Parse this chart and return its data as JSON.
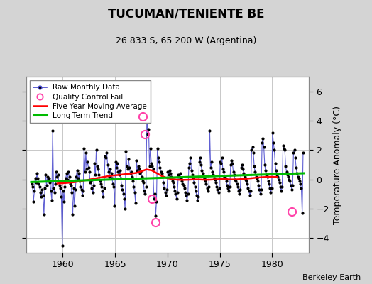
{
  "title": "TUCUMAN/TENIENTE BE",
  "subtitle": "26.833 S, 65.200 W (Argentina)",
  "ylabel": "Temperature Anomaly (°C)",
  "attribution": "Berkeley Earth",
  "xlim": [
    1956.5,
    1983.5
  ],
  "ylim": [
    -5.0,
    7.0
  ],
  "yticks": [
    -4,
    -2,
    0,
    2,
    4,
    6
  ],
  "xticks": [
    1960,
    1965,
    1970,
    1975,
    1980
  ],
  "bg_color": "#d4d4d4",
  "plot_bg_color": "#ffffff",
  "grid_color": "#c8c8c8",
  "raw_line_color": "#4444cc",
  "raw_dot_color": "#000000",
  "qc_fail_color": "#ff44aa",
  "moving_avg_color": "#ff0000",
  "trend_color": "#00bb00",
  "raw_monthly_data": [
    [
      1957.042,
      -0.3
    ],
    [
      1957.125,
      -0.5
    ],
    [
      1957.208,
      -1.5
    ],
    [
      1957.292,
      -0.8
    ],
    [
      1957.375,
      0.1
    ],
    [
      1957.458,
      -0.2
    ],
    [
      1957.542,
      0.4
    ],
    [
      1957.625,
      0.1
    ],
    [
      1957.708,
      -0.3
    ],
    [
      1957.792,
      -0.5
    ],
    [
      1957.875,
      -0.9
    ],
    [
      1957.958,
      -1.2
    ],
    [
      1958.042,
      -0.7
    ],
    [
      1958.125,
      -1.1
    ],
    [
      1958.208,
      -2.4
    ],
    [
      1958.292,
      -0.6
    ],
    [
      1958.375,
      0.3
    ],
    [
      1958.458,
      -0.4
    ],
    [
      1958.542,
      0.2
    ],
    [
      1958.625,
      0.0
    ],
    [
      1958.708,
      0.1
    ],
    [
      1958.792,
      -0.2
    ],
    [
      1958.875,
      -0.8
    ],
    [
      1958.958,
      -1.4
    ],
    [
      1959.042,
      3.3
    ],
    [
      1959.125,
      -0.6
    ],
    [
      1959.208,
      -0.9
    ],
    [
      1959.292,
      -0.3
    ],
    [
      1959.375,
      0.5
    ],
    [
      1959.458,
      0.2
    ],
    [
      1959.542,
      0.3
    ],
    [
      1959.625,
      -0.1
    ],
    [
      1959.708,
      -0.4
    ],
    [
      1959.792,
      -0.6
    ],
    [
      1959.875,
      -1.2
    ],
    [
      1959.958,
      -4.5
    ],
    [
      1960.042,
      -0.8
    ],
    [
      1960.125,
      -1.5
    ],
    [
      1960.208,
      -0.5
    ],
    [
      1960.292,
      0.1
    ],
    [
      1960.375,
      0.4
    ],
    [
      1960.458,
      0.0
    ],
    [
      1960.542,
      0.5
    ],
    [
      1960.625,
      0.2
    ],
    [
      1960.708,
      -0.3
    ],
    [
      1960.792,
      -0.4
    ],
    [
      1960.875,
      -0.9
    ],
    [
      1960.958,
      -2.4
    ],
    [
      1961.042,
      -0.6
    ],
    [
      1961.125,
      -1.8
    ],
    [
      1961.208,
      -0.7
    ],
    [
      1961.292,
      0.2
    ],
    [
      1961.375,
      0.6
    ],
    [
      1961.458,
      0.1
    ],
    [
      1961.542,
      0.4
    ],
    [
      1961.625,
      -0.1
    ],
    [
      1961.708,
      -0.5
    ],
    [
      1961.792,
      -0.7
    ],
    [
      1961.875,
      -1.1
    ],
    [
      1961.958,
      -0.8
    ],
    [
      1962.042,
      2.1
    ],
    [
      1962.125,
      0.5
    ],
    [
      1962.208,
      1.8
    ],
    [
      1962.292,
      0.7
    ],
    [
      1962.375,
      1.2
    ],
    [
      1962.458,
      0.8
    ],
    [
      1962.542,
      0.5
    ],
    [
      1962.625,
      -0.2
    ],
    [
      1962.708,
      -0.1
    ],
    [
      1962.792,
      -0.6
    ],
    [
      1962.875,
      -0.9
    ],
    [
      1962.958,
      -0.4
    ],
    [
      1963.042,
      1.1
    ],
    [
      1963.125,
      0.3
    ],
    [
      1963.208,
      2.0
    ],
    [
      1963.292,
      0.9
    ],
    [
      1963.375,
      0.7
    ],
    [
      1963.458,
      0.3
    ],
    [
      1963.542,
      -0.1
    ],
    [
      1963.625,
      -0.3
    ],
    [
      1963.708,
      -0.5
    ],
    [
      1963.792,
      -0.8
    ],
    [
      1963.875,
      -1.2
    ],
    [
      1963.958,
      -0.6
    ],
    [
      1964.042,
      1.6
    ],
    [
      1964.125,
      1.5
    ],
    [
      1964.208,
      1.8
    ],
    [
      1964.292,
      1.0
    ],
    [
      1964.375,
      0.5
    ],
    [
      1964.458,
      0.2
    ],
    [
      1964.542,
      0.7
    ],
    [
      1964.625,
      0.4
    ],
    [
      1964.708,
      0.1
    ],
    [
      1964.792,
      -0.3
    ],
    [
      1964.875,
      -0.5
    ],
    [
      1964.958,
      -1.8
    ],
    [
      1965.042,
      1.2
    ],
    [
      1965.125,
      0.8
    ],
    [
      1965.208,
      1.1
    ],
    [
      1965.292,
      0.5
    ],
    [
      1965.375,
      0.3
    ],
    [
      1965.458,
      0.6
    ],
    [
      1965.542,
      0.1
    ],
    [
      1965.625,
      -0.4
    ],
    [
      1965.708,
      -0.7
    ],
    [
      1965.792,
      -1.0
    ],
    [
      1965.875,
      -1.3
    ],
    [
      1965.958,
      -2.0
    ],
    [
      1966.042,
      1.9
    ],
    [
      1966.125,
      0.9
    ],
    [
      1966.208,
      0.7
    ],
    [
      1966.292,
      1.4
    ],
    [
      1966.375,
      0.8
    ],
    [
      1966.458,
      0.4
    ],
    [
      1966.542,
      0.5
    ],
    [
      1966.625,
      0.2
    ],
    [
      1966.708,
      -0.1
    ],
    [
      1966.792,
      -0.5
    ],
    [
      1966.875,
      -0.9
    ],
    [
      1966.958,
      -1.6
    ],
    [
      1967.042,
      1.3
    ],
    [
      1967.125,
      0.6
    ],
    [
      1967.208,
      0.9
    ],
    [
      1967.292,
      0.7
    ],
    [
      1967.375,
      0.4
    ],
    [
      1967.458,
      0.5
    ],
    [
      1967.542,
      0.2
    ],
    [
      1967.625,
      -0.1
    ],
    [
      1967.708,
      -0.2
    ],
    [
      1967.792,
      -0.8
    ],
    [
      1967.875,
      -1.0
    ],
    [
      1967.958,
      -0.5
    ],
    [
      1968.042,
      4.3
    ],
    [
      1968.125,
      3.1
    ],
    [
      1968.208,
      3.4
    ],
    [
      1968.292,
      0.9
    ],
    [
      1968.375,
      2.1
    ],
    [
      1968.458,
      1.1
    ],
    [
      1968.542,
      0.9
    ],
    [
      1968.625,
      0.7
    ],
    [
      1968.708,
      -1.3
    ],
    [
      1968.792,
      -1.0
    ],
    [
      1968.875,
      -2.5
    ],
    [
      1968.958,
      -1.5
    ],
    [
      1969.042,
      2.1
    ],
    [
      1969.125,
      1.5
    ],
    [
      1969.208,
      1.2
    ],
    [
      1969.292,
      0.8
    ],
    [
      1969.375,
      0.5
    ],
    [
      1969.458,
      0.4
    ],
    [
      1969.542,
      0.2
    ],
    [
      1969.625,
      -0.2
    ],
    [
      1969.708,
      -0.6
    ],
    [
      1969.792,
      -0.9
    ],
    [
      1969.875,
      -1.1
    ],
    [
      1969.958,
      -0.7
    ],
    [
      1970.042,
      0.5
    ],
    [
      1970.125,
      0.3
    ],
    [
      1970.208,
      0.6
    ],
    [
      1970.292,
      0.4
    ],
    [
      1970.375,
      0.2
    ],
    [
      1970.458,
      -0.1
    ],
    [
      1970.542,
      -0.2
    ],
    [
      1970.625,
      -0.5
    ],
    [
      1970.708,
      -0.8
    ],
    [
      1970.792,
      -1.0
    ],
    [
      1970.875,
      -1.3
    ],
    [
      1970.958,
      -0.9
    ],
    [
      1971.042,
      0.3
    ],
    [
      1971.125,
      0.2
    ],
    [
      1971.208,
      0.4
    ],
    [
      1971.292,
      0.1
    ],
    [
      1971.375,
      -0.1
    ],
    [
      1971.458,
      -0.3
    ],
    [
      1971.542,
      -0.4
    ],
    [
      1971.625,
      -0.6
    ],
    [
      1971.708,
      -0.9
    ],
    [
      1971.792,
      -1.1
    ],
    [
      1971.875,
      -1.4
    ],
    [
      1971.958,
      -1.0
    ],
    [
      1972.042,
      0.8
    ],
    [
      1972.125,
      1.1
    ],
    [
      1972.208,
      1.5
    ],
    [
      1972.292,
      0.6
    ],
    [
      1972.375,
      0.3
    ],
    [
      1972.458,
      0.1
    ],
    [
      1972.542,
      -0.2
    ],
    [
      1972.625,
      -0.5
    ],
    [
      1972.708,
      -0.8
    ],
    [
      1972.792,
      -1.1
    ],
    [
      1972.875,
      -1.4
    ],
    [
      1972.958,
      -1.2
    ],
    [
      1973.042,
      1.2
    ],
    [
      1973.125,
      1.5
    ],
    [
      1973.208,
      1.0
    ],
    [
      1973.292,
      0.6
    ],
    [
      1973.375,
      0.4
    ],
    [
      1973.458,
      0.2
    ],
    [
      1973.542,
      0.1
    ],
    [
      1973.625,
      -0.1
    ],
    [
      1973.708,
      -0.3
    ],
    [
      1973.792,
      -0.6
    ],
    [
      1973.875,
      -0.8
    ],
    [
      1973.958,
      -0.5
    ],
    [
      1974.042,
      3.3
    ],
    [
      1974.125,
      0.8
    ],
    [
      1974.208,
      1.2
    ],
    [
      1974.292,
      0.5
    ],
    [
      1974.375,
      0.3
    ],
    [
      1974.458,
      0.1
    ],
    [
      1974.542,
      0.0
    ],
    [
      1974.625,
      -0.2
    ],
    [
      1974.708,
      -0.5
    ],
    [
      1974.792,
      -0.7
    ],
    [
      1974.875,
      -0.9
    ],
    [
      1974.958,
      -0.6
    ],
    [
      1975.042,
      1.2
    ],
    [
      1975.125,
      1.1
    ],
    [
      1975.208,
      1.5
    ],
    [
      1975.292,
      0.7
    ],
    [
      1975.375,
      0.5
    ],
    [
      1975.458,
      0.2
    ],
    [
      1975.542,
      0.1
    ],
    [
      1975.625,
      -0.1
    ],
    [
      1975.708,
      -0.4
    ],
    [
      1975.792,
      -0.6
    ],
    [
      1975.875,
      -0.8
    ],
    [
      1975.958,
      -0.5
    ],
    [
      1976.042,
      1.0
    ],
    [
      1976.125,
      1.3
    ],
    [
      1976.208,
      1.1
    ],
    [
      1976.292,
      0.5
    ],
    [
      1976.375,
      0.3
    ],
    [
      1976.458,
      0.0
    ],
    [
      1976.542,
      -0.1
    ],
    [
      1976.625,
      -0.3
    ],
    [
      1976.708,
      -0.5
    ],
    [
      1976.792,
      -0.8
    ],
    [
      1976.875,
      -1.0
    ],
    [
      1976.958,
      -0.7
    ],
    [
      1977.042,
      0.8
    ],
    [
      1977.125,
      1.0
    ],
    [
      1977.208,
      0.7
    ],
    [
      1977.292,
      0.4
    ],
    [
      1977.375,
      0.2
    ],
    [
      1977.458,
      0.0
    ],
    [
      1977.542,
      -0.1
    ],
    [
      1977.625,
      -0.3
    ],
    [
      1977.708,
      -0.6
    ],
    [
      1977.792,
      -0.8
    ],
    [
      1977.875,
      -1.1
    ],
    [
      1977.958,
      -0.8
    ],
    [
      1978.042,
      2.0
    ],
    [
      1978.125,
      2.2
    ],
    [
      1978.208,
      1.8
    ],
    [
      1978.292,
      0.9
    ],
    [
      1978.375,
      0.5
    ],
    [
      1978.458,
      0.2
    ],
    [
      1978.542,
      0.1
    ],
    [
      1978.625,
      -0.1
    ],
    [
      1978.708,
      -0.4
    ],
    [
      1978.792,
      -0.7
    ],
    [
      1978.875,
      -1.0
    ],
    [
      1978.958,
      -0.7
    ],
    [
      1979.042,
      2.5
    ],
    [
      1979.125,
      2.8
    ],
    [
      1979.208,
      2.2
    ],
    [
      1979.292,
      1.0
    ],
    [
      1979.375,
      0.6
    ],
    [
      1979.458,
      0.3
    ],
    [
      1979.542,
      0.2
    ],
    [
      1979.625,
      -0.1
    ],
    [
      1979.708,
      -0.3
    ],
    [
      1979.792,
      -0.6
    ],
    [
      1979.875,
      -0.9
    ],
    [
      1979.958,
      -0.6
    ],
    [
      1980.042,
      3.2
    ],
    [
      1980.125,
      2.5
    ],
    [
      1980.208,
      2.0
    ],
    [
      1980.292,
      1.1
    ],
    [
      1980.375,
      0.6
    ],
    [
      1980.458,
      0.3
    ],
    [
      1980.542,
      0.2
    ],
    [
      1980.625,
      0.0
    ],
    [
      1980.708,
      -0.2
    ],
    [
      1980.792,
      -0.5
    ],
    [
      1980.875,
      -0.8
    ],
    [
      1980.958,
      -0.5
    ],
    [
      1981.042,
      2.3
    ],
    [
      1981.125,
      2.1
    ],
    [
      1981.208,
      2.0
    ],
    [
      1981.292,
      0.9
    ],
    [
      1981.375,
      0.5
    ],
    [
      1981.458,
      0.3
    ],
    [
      1981.542,
      0.2
    ],
    [
      1981.625,
      0.0
    ],
    [
      1981.708,
      -0.1
    ],
    [
      1981.792,
      -0.4
    ],
    [
      1981.875,
      -0.7
    ],
    [
      1981.958,
      -0.4
    ],
    [
      1982.042,
      1.8
    ],
    [
      1982.125,
      2.0
    ],
    [
      1982.208,
      1.5
    ],
    [
      1982.292,
      0.8
    ],
    [
      1982.375,
      0.4
    ],
    [
      1982.458,
      0.2
    ],
    [
      1982.542,
      0.1
    ],
    [
      1982.625,
      -0.1
    ],
    [
      1982.708,
      -0.3
    ],
    [
      1982.792,
      -0.6
    ],
    [
      1982.875,
      -2.3
    ],
    [
      1982.958,
      1.8
    ]
  ],
  "qc_fail_points": [
    [
      1967.625,
      4.3
    ],
    [
      1967.875,
      3.1
    ],
    [
      1968.542,
      -1.3
    ],
    [
      1968.875,
      -2.9
    ],
    [
      1981.875,
      -2.2
    ]
  ],
  "moving_avg": [
    [
      1959.5,
      -0.28
    ],
    [
      1960.0,
      -0.26
    ],
    [
      1960.5,
      -0.23
    ],
    [
      1961.0,
      -0.2
    ],
    [
      1961.5,
      -0.15
    ],
    [
      1962.0,
      -0.08
    ],
    [
      1962.5,
      -0.02
    ],
    [
      1963.0,
      0.05
    ],
    [
      1963.5,
      0.12
    ],
    [
      1964.0,
      0.18
    ],
    [
      1964.5,
      0.24
    ],
    [
      1965.0,
      0.28
    ],
    [
      1965.5,
      0.32
    ],
    [
      1966.0,
      0.36
    ],
    [
      1966.5,
      0.4
    ],
    [
      1967.0,
      0.44
    ],
    [
      1967.5,
      0.55
    ],
    [
      1968.0,
      0.68
    ],
    [
      1968.5,
      0.62
    ],
    [
      1969.0,
      0.42
    ],
    [
      1969.5,
      0.22
    ],
    [
      1970.0,
      0.08
    ],
    [
      1970.5,
      0.02
    ],
    [
      1971.0,
      -0.02
    ],
    [
      1971.5,
      -0.03
    ],
    [
      1972.0,
      -0.02
    ],
    [
      1972.5,
      0.0
    ],
    [
      1973.0,
      0.0
    ],
    [
      1973.5,
      -0.02
    ],
    [
      1974.0,
      -0.02
    ],
    [
      1974.5,
      0.0
    ],
    [
      1975.0,
      0.02
    ],
    [
      1975.5,
      0.02
    ],
    [
      1976.0,
      0.0
    ],
    [
      1976.5,
      0.0
    ],
    [
      1977.0,
      0.02
    ],
    [
      1977.5,
      0.05
    ],
    [
      1978.0,
      0.08
    ],
    [
      1978.5,
      0.12
    ],
    [
      1979.0,
      0.15
    ],
    [
      1979.5,
      0.17
    ],
    [
      1980.0,
      0.18
    ],
    [
      1980.5,
      0.16
    ]
  ],
  "trend_line": [
    [
      1957.0,
      -0.18
    ],
    [
      1983.0,
      0.42
    ]
  ]
}
